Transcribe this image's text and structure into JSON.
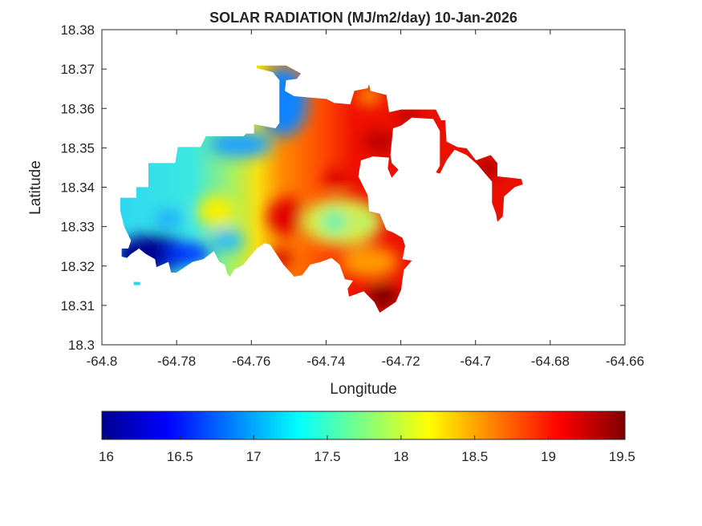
{
  "chart_data": {
    "type": "heatmap",
    "title": "SOLAR RADIATION (MJ/m2/day) 10-Jan-2026",
    "xlabel": "Longitude",
    "ylabel": "Latitude",
    "xlim": [
      -64.8,
      -64.66
    ],
    "ylim": [
      18.3,
      18.38
    ],
    "xticks": [
      -64.8,
      -64.78,
      -64.76,
      -64.74,
      -64.72,
      -64.7,
      -64.68,
      -64.66
    ],
    "xtick_labels": [
      "-64.8",
      "-64.78",
      "-64.76",
      "-64.74",
      "-64.72",
      "-64.7",
      "-64.68",
      "-64.66"
    ],
    "yticks": [
      18.3,
      18.31,
      18.32,
      18.33,
      18.34,
      18.35,
      18.36,
      18.37,
      18.38
    ],
    "ytick_labels": [
      "18.3",
      "18.31",
      "18.32",
      "18.33",
      "18.34",
      "18.35",
      "18.36",
      "18.37",
      "18.38"
    ],
    "grid": false,
    "colormap": "jet",
    "colorbar": {
      "location": "bottom",
      "range": [
        15.97,
        19.52
      ],
      "ticks": [
        16,
        16.5,
        17,
        17.5,
        18,
        18.5,
        19,
        19.5
      ],
      "tick_labels": [
        "16",
        "16.5",
        "17",
        "17.5",
        "18",
        "18.5",
        "19",
        "19.5"
      ]
    },
    "value_range": [
      16,
      19.5
    ]
  }
}
